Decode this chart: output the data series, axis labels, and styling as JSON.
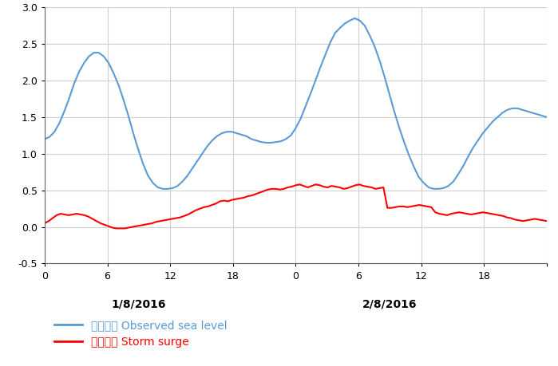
{
  "xlim": [
    0,
    48
  ],
  "ylim": [
    -0.5,
    3.0
  ],
  "yticks": [
    -0.5,
    0.0,
    0.5,
    1.0,
    1.5,
    2.0,
    2.5,
    3.0
  ],
  "xticks": [
    0,
    6,
    12,
    18,
    24,
    30,
    36,
    42,
    48
  ],
  "xtick_labels": [
    "0",
    "6",
    "12",
    "18",
    "0",
    "6",
    "12",
    "18",
    ""
  ],
  "date_label_1": {
    "x": 9,
    "text": "1/8/2016"
  },
  "date_label_2": {
    "x": 33,
    "text": "2/8/2016"
  },
  "legend_obs_label": "實測潮位 Observed sea level",
  "legend_surge_label": "風暴潮位 Storm surge",
  "grid_color": "#d0d0d0",
  "bg_color": "#ffffff",
  "observed_color": "#5b9bd5",
  "surge_color": "#ff0000",
  "obs_lw": 1.5,
  "surge_lw": 1.5,
  "observed_sea_level": [
    1.2,
    1.23,
    1.3,
    1.42,
    1.58,
    1.76,
    1.96,
    2.12,
    2.24,
    2.33,
    2.38,
    2.38,
    2.33,
    2.24,
    2.1,
    1.94,
    1.74,
    1.52,
    1.28,
    1.06,
    0.86,
    0.7,
    0.6,
    0.54,
    0.52,
    0.52,
    0.53,
    0.56,
    0.62,
    0.7,
    0.8,
    0.9,
    1.0,
    1.1,
    1.18,
    1.24,
    1.28,
    1.3,
    1.3,
    1.28,
    1.26,
    1.24,
    1.2,
    1.18,
    1.16,
    1.15,
    1.15,
    1.16,
    1.17,
    1.2,
    1.25,
    1.35,
    1.48,
    1.65,
    1.82,
    2.0,
    2.18,
    2.35,
    2.52,
    2.65,
    2.72,
    2.78,
    2.82,
    2.85,
    2.82,
    2.75,
    2.62,
    2.47,
    2.28,
    2.06,
    1.82,
    1.58,
    1.36,
    1.16,
    0.98,
    0.82,
    0.68,
    0.6,
    0.54,
    0.52,
    0.52,
    0.53,
    0.56,
    0.62,
    0.72,
    0.83,
    0.96,
    1.08,
    1.18,
    1.28,
    1.36,
    1.44,
    1.5,
    1.56,
    1.6,
    1.62,
    1.62,
    1.6,
    1.58,
    1.56,
    1.54,
    1.52,
    1.5
  ],
  "storm_surge": [
    0.05,
    0.08,
    0.12,
    0.16,
    0.18,
    0.17,
    0.16,
    0.17,
    0.18,
    0.17,
    0.16,
    0.14,
    0.11,
    0.08,
    0.05,
    0.03,
    0.01,
    -0.01,
    -0.02,
    -0.02,
    -0.02,
    -0.01,
    0.0,
    0.01,
    0.02,
    0.03,
    0.04,
    0.05,
    0.07,
    0.08,
    0.09,
    0.1,
    0.11,
    0.12,
    0.13,
    0.15,
    0.17,
    0.2,
    0.23,
    0.25,
    0.27,
    0.28,
    0.3,
    0.32,
    0.35,
    0.36,
    0.35,
    0.37,
    0.38,
    0.39,
    0.4,
    0.42,
    0.43,
    0.45,
    0.47,
    0.49,
    0.51,
    0.52,
    0.52,
    0.51,
    0.52,
    0.54,
    0.55,
    0.57,
    0.58,
    0.56,
    0.54,
    0.56,
    0.58,
    0.57,
    0.55,
    0.54,
    0.56,
    0.55,
    0.54,
    0.52,
    0.53,
    0.55,
    0.57,
    0.58,
    0.56,
    0.55,
    0.54,
    0.52,
    0.53,
    0.54,
    0.26,
    0.26,
    0.27,
    0.28,
    0.28,
    0.27,
    0.28,
    0.29,
    0.3,
    0.29,
    0.28,
    0.27,
    0.2,
    0.18,
    0.17,
    0.16,
    0.18,
    0.19,
    0.2,
    0.19,
    0.18,
    0.17,
    0.18,
    0.19,
    0.2,
    0.19,
    0.18,
    0.17,
    0.16,
    0.15,
    0.13,
    0.12,
    0.1,
    0.09,
    0.08,
    0.09,
    0.1,
    0.11,
    0.1,
    0.09,
    0.08
  ]
}
